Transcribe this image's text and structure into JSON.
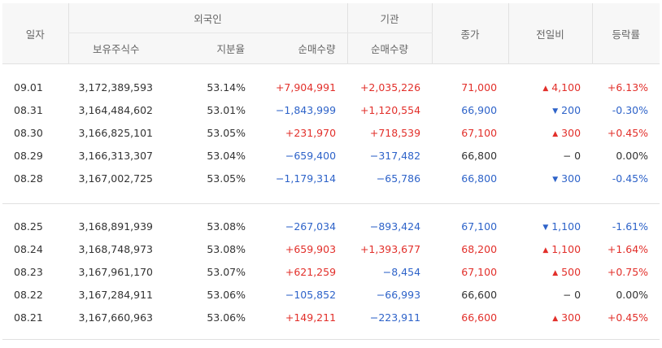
{
  "header": {
    "date": "일자",
    "foreign": "외국인",
    "institution": "기관",
    "close": "종가",
    "change": "전일비",
    "rate": "등락률",
    "foreign_holdings": "보유주식수",
    "foreign_ratio": "지분율",
    "foreign_net": "순매수량",
    "inst_net": "순매수량"
  },
  "colors": {
    "up": "#e22f2a",
    "down": "#2e63c9",
    "flat": "#333333"
  },
  "icons": {
    "up": "up-triangle-icon",
    "down": "down-triangle-icon",
    "flat": "dash-icon"
  },
  "groups": [
    [
      {
        "date": "09.01",
        "holdings": "3,172,389,593",
        "ratio": "53.14%",
        "foreign_net": "+7,904,991",
        "foreign_dir": "up",
        "inst_net": "+2,035,226",
        "inst_dir": "up",
        "close": "71,000",
        "dir": "up",
        "change": "4,100",
        "rate": "+6.13%"
      },
      {
        "date": "08.31",
        "holdings": "3,164,484,602",
        "ratio": "53.01%",
        "foreign_net": "−1,843,999",
        "foreign_dir": "down",
        "inst_net": "+1,120,554",
        "inst_dir": "up",
        "close": "66,900",
        "dir": "down",
        "change": "200",
        "rate": "-0.30%"
      },
      {
        "date": "08.30",
        "holdings": "3,166,825,101",
        "ratio": "53.05%",
        "foreign_net": "+231,970",
        "foreign_dir": "up",
        "inst_net": "+718,539",
        "inst_dir": "up",
        "close": "67,100",
        "dir": "up",
        "change": "300",
        "rate": "+0.45%"
      },
      {
        "date": "08.29",
        "holdings": "3,166,313,307",
        "ratio": "53.04%",
        "foreign_net": "−659,400",
        "foreign_dir": "down",
        "inst_net": "−317,482",
        "inst_dir": "down",
        "close": "66,800",
        "dir": "flat",
        "change": "0",
        "rate": "0.00%"
      },
      {
        "date": "08.28",
        "holdings": "3,167,002,725",
        "ratio": "53.05%",
        "foreign_net": "−1,179,314",
        "foreign_dir": "down",
        "inst_net": "−65,786",
        "inst_dir": "down",
        "close": "66,800",
        "dir": "down",
        "change": "300",
        "rate": "-0.45%"
      }
    ],
    [
      {
        "date": "08.25",
        "holdings": "3,168,891,939",
        "ratio": "53.08%",
        "foreign_net": "−267,034",
        "foreign_dir": "down",
        "inst_net": "−893,424",
        "inst_dir": "down",
        "close": "67,100",
        "dir": "down",
        "change": "1,100",
        "rate": "-1.61%"
      },
      {
        "date": "08.24",
        "holdings": "3,168,748,973",
        "ratio": "53.08%",
        "foreign_net": "+659,903",
        "foreign_dir": "up",
        "inst_net": "+1,393,677",
        "inst_dir": "up",
        "close": "68,200",
        "dir": "up",
        "change": "1,100",
        "rate": "+1.64%"
      },
      {
        "date": "08.23",
        "holdings": "3,167,961,170",
        "ratio": "53.07%",
        "foreign_net": "+621,259",
        "foreign_dir": "up",
        "inst_net": "−8,454",
        "inst_dir": "down",
        "close": "67,100",
        "dir": "up",
        "change": "500",
        "rate": "+0.75%"
      },
      {
        "date": "08.22",
        "holdings": "3,167,284,911",
        "ratio": "53.06%",
        "foreign_net": "−105,852",
        "foreign_dir": "down",
        "inst_net": "−66,993",
        "inst_dir": "down",
        "close": "66,600",
        "dir": "flat",
        "change": "0",
        "rate": "0.00%"
      },
      {
        "date": "08.21",
        "holdings": "3,167,660,963",
        "ratio": "53.06%",
        "foreign_net": "+149,211",
        "foreign_dir": "up",
        "inst_net": "−223,911",
        "inst_dir": "down",
        "close": "66,600",
        "dir": "up",
        "change": "300",
        "rate": "+0.45%"
      }
    ]
  ]
}
